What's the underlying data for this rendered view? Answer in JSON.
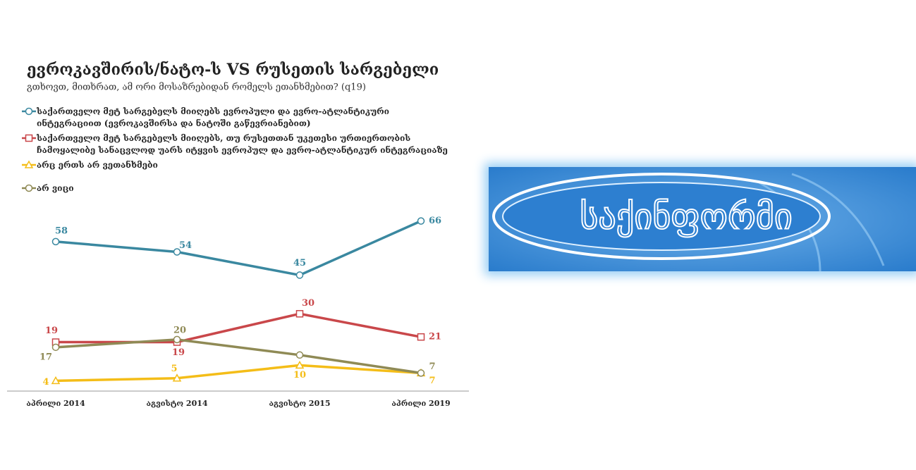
{
  "chart_data": {
    "type": "line",
    "title": "ევროკავშირის/ნატო-ს VS რუსეთის სარგებელი",
    "subtitle": "გთხოვთ, მითხრათ, ამ ორი მოსაზრებიდან რომელს ეთანხმებით? (q19)",
    "categories": [
      "აპრილი 2014",
      "აგვისტო 2014",
      "აგვისტო 2015",
      "აპრილი 2019"
    ],
    "ylim": [
      0,
      70
    ],
    "series": [
      {
        "name": "საქართველო მეტ სარგებელს მიიღებს ევროპული და ევრო-ატლანტიკური ინტეგრაციით (ევროკავშირსა და ნატოში გაწევრიანებით)",
        "color": "#3a88a0",
        "marker": "circle",
        "values": [
          58,
          54,
          45,
          66
        ]
      },
      {
        "name": "საქართველო მეტ სარგებელს მიიღებს, თუ რუსეთთან უკეთესი ურთიერთობის ჩამოყალიბე სანაცვლოდ უარს იტყვის ევროპულ და ევრო-ატლანტიკურ ინტეგრაციაზე",
        "color": "#c9474a",
        "marker": "square",
        "values": [
          19,
          19,
          30,
          21
        ]
      },
      {
        "name": "არც ერთს არ ვეთანხმები",
        "color": "#f4bd18",
        "marker": "triangle",
        "values": [
          4,
          5,
          10,
          7
        ]
      },
      {
        "name": "არ ვიცი",
        "color": "#8f8a55",
        "marker": "circle",
        "values": [
          17,
          20,
          14,
          7
        ],
        "value_labels": [
          "17",
          "20",
          null,
          "7"
        ]
      }
    ]
  },
  "logo": {
    "text": "საქინფორმი"
  }
}
